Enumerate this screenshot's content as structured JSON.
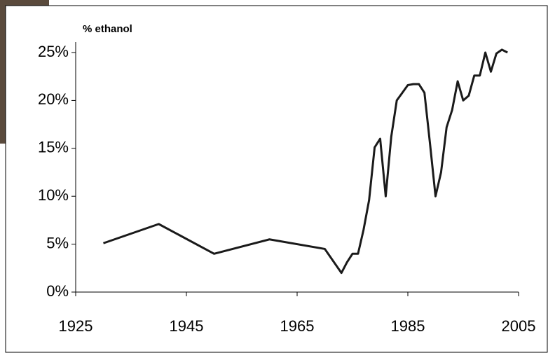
{
  "chart_data": {
    "type": "line",
    "title": "% ethanol",
    "x": [
      1930,
      1940,
      1950,
      1960,
      1970,
      1973,
      1974,
      1975,
      1976,
      1977,
      1978,
      1979,
      1980,
      1981,
      1982,
      1983,
      1984,
      1985,
      1986,
      1987,
      1988,
      1989,
      1990,
      1991,
      1992,
      1993,
      1994,
      1995,
      1996,
      1997,
      1998,
      1999,
      2000,
      2001,
      2002,
      2003
    ],
    "values": [
      5.1,
      7.1,
      4.0,
      5.5,
      4.5,
      2.0,
      3.1,
      4.0,
      4.0,
      6.5,
      9.6,
      15.1,
      16.0,
      10.0,
      16.2,
      20.0,
      20.8,
      21.6,
      21.7,
      21.7,
      20.8,
      15.5,
      10.0,
      12.5,
      17.2,
      19.0,
      22.0,
      20.0,
      20.5,
      22.6,
      22.6,
      25.0,
      23.0,
      24.9,
      25.3,
      25.0
    ],
    "color": "#1a1a1a",
    "xlim": [
      1925,
      2005
    ],
    "xticks": [
      1925,
      1945,
      1965,
      1985,
      2005
    ],
    "ylim": [
      0,
      25
    ],
    "yticks": [
      {
        "value": 0,
        "label": "0%"
      },
      {
        "value": 5,
        "label": "5%"
      },
      {
        "value": 10,
        "label": "10%"
      },
      {
        "value": 15,
        "label": "15%"
      },
      {
        "value": 20,
        "label": "20%"
      },
      {
        "value": 25,
        "label": "25%"
      }
    ]
  }
}
